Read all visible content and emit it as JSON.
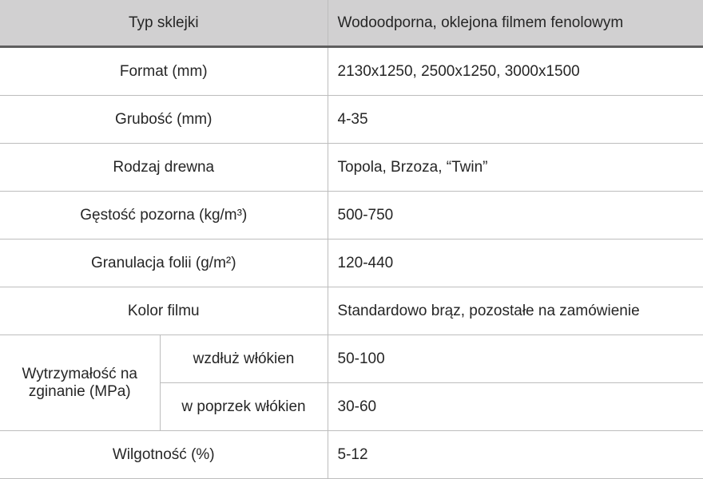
{
  "header": {
    "label": "Typ sklejki",
    "value": "Wodoodporna, oklejona filmem fenolowym"
  },
  "rows": [
    {
      "label": "Format (mm)",
      "value": "2130x1250, 2500x1250, 3000x1500"
    },
    {
      "label": "Grubość (mm)",
      "value": "4-35"
    },
    {
      "label": "Rodzaj drewna",
      "value": "Topola, Brzoza, “Twin”"
    },
    {
      "label": "Gęstość pozorna (kg/m³)",
      "value": "500-750"
    },
    {
      "label": "Granulacja folii (g/m²)",
      "value": "120-440"
    },
    {
      "label": "Kolor filmu",
      "value": "Standardowo brąz, pozostałe na zamówienie"
    }
  ],
  "strength": {
    "label": "Wytrzymałość na zginanie (MPa)",
    "sub": [
      {
        "label": "wzdłuż włókien",
        "value": "50-100"
      },
      {
        "label": "w poprzek włókien",
        "value": "30-60"
      }
    ]
  },
  "last": {
    "label": "Wilgotność (%)",
    "value": "5-12"
  }
}
